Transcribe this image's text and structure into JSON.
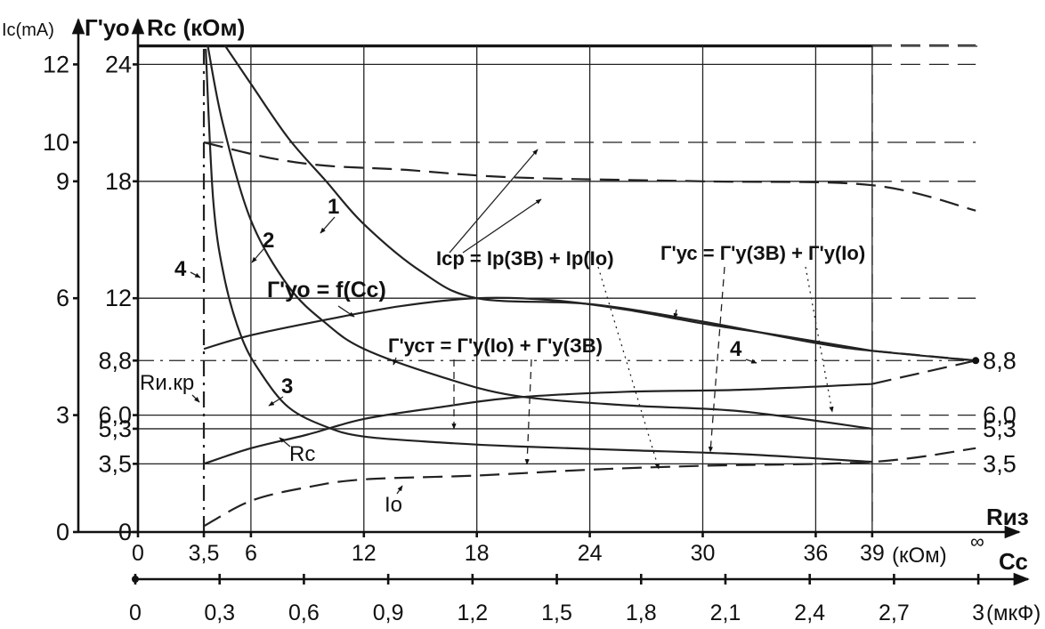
{
  "chart_data": {
    "type": "line",
    "title": "",
    "axes": {
      "left_outer_label": "Iс(mA)",
      "left_mid_label": "Г'уо",
      "left_inner_label": "Rс (кОм)",
      "top_x_label": "Rиз",
      "top_x_unit": "(кОм)",
      "bottom_x_label": "Сс",
      "bottom_x_unit": "(мкФ)"
    },
    "ticks": {
      "ic_ma": [
        {
          "label": "12",
          "y": 24
        },
        {
          "label": "10",
          "y": 20
        },
        {
          "label": "9",
          "y": 18
        },
        {
          "label": "6",
          "y": 12
        },
        {
          "label": "3",
          "y": 6
        },
        {
          "label": "0",
          "y": 0
        }
      ],
      "g_left": [
        {
          "label": "24",
          "y": 24
        },
        {
          "label": "18",
          "y": 18
        },
        {
          "label": "12",
          "y": 12
        },
        {
          "label": "8,8",
          "y": 8.8
        },
        {
          "label": "6,0",
          "y": 6.0
        },
        {
          "label": "5,3",
          "y": 5.3
        },
        {
          "label": "3,5",
          "y": 3.5
        },
        {
          "label": "0",
          "y": 0
        }
      ],
      "g_right": [
        {
          "label": "8,8",
          "y": 8.8
        },
        {
          "label": "6,0",
          "y": 6.0
        },
        {
          "label": "5,3",
          "y": 5.3
        },
        {
          "label": "3,5",
          "y": 3.5
        }
      ],
      "riz": [
        {
          "label": "0",
          "x": 0
        },
        {
          "label": "3,5",
          "x": 3.5
        },
        {
          "label": "6",
          "x": 6
        },
        {
          "label": "12",
          "x": 12
        },
        {
          "label": "18",
          "x": 18
        },
        {
          "label": "24",
          "x": 24
        },
        {
          "label": "30",
          "x": 30
        },
        {
          "label": "36",
          "x": 36
        },
        {
          "label": "39",
          "x": 39
        }
      ],
      "riz_infinity": "∞",
      "cc": [
        {
          "label": "0",
          "x": 0
        },
        {
          "label": "0,3",
          "x": 0.3
        },
        {
          "label": "0,6",
          "x": 0.6
        },
        {
          "label": "0,9",
          "x": 0.9
        },
        {
          "label": "1,2",
          "x": 1.2
        },
        {
          "label": "1,5",
          "x": 1.5
        },
        {
          "label": "1,8",
          "x": 1.8
        },
        {
          "label": "2,1",
          "x": 2.1
        },
        {
          "label": "2,4",
          "x": 2.4
        },
        {
          "label": "2,7",
          "x": 2.7
        },
        {
          "label": "3",
          "x": 3.0
        }
      ]
    },
    "grid": true,
    "reference_lines": [
      {
        "y": 25.0,
        "style": "solid",
        "to": "infinity"
      },
      {
        "y": 24.0,
        "style": "solid",
        "to": "infinity"
      },
      {
        "y": 18.0,
        "style": "solid",
        "to": "infinity"
      },
      {
        "y": 12.0,
        "style": "solid",
        "to": "infinity"
      },
      {
        "y": 6.0,
        "style": "solid",
        "to": "infinity"
      },
      {
        "y": 5.3,
        "style": "solid",
        "to": "infinity"
      },
      {
        "y": 3.5,
        "style": "solid",
        "to": "infinity"
      },
      {
        "y": 20.0,
        "style": "dashed",
        "from": 3.5,
        "to": "infinity"
      },
      {
        "y": 8.8,
        "style": "dashdot",
        "from": 0,
        "to": "infinity"
      }
    ],
    "series": [
      {
        "key": "curve1",
        "style": "solid",
        "points": [
          [
            4.6,
            25
          ],
          [
            6,
            23
          ],
          [
            8,
            20.2
          ],
          [
            10,
            18
          ],
          [
            12,
            15.8
          ],
          [
            15,
            13.4
          ],
          [
            18,
            12.0
          ],
          [
            24,
            11.7
          ],
          [
            30,
            10.8
          ],
          [
            36,
            9.7
          ],
          [
            39,
            9.3
          ],
          [
            44.5,
            8.8
          ]
        ]
      },
      {
        "key": "curve2",
        "style": "solid",
        "points": [
          [
            3.7,
            25
          ],
          [
            4.5,
            21
          ],
          [
            6,
            16
          ],
          [
            8,
            12.6
          ],
          [
            10,
            10.7
          ],
          [
            12,
            9.4
          ],
          [
            16,
            8.0
          ],
          [
            20,
            7.0
          ],
          [
            26,
            6.5
          ],
          [
            32,
            6.2
          ],
          [
            39,
            5.3
          ]
        ]
      },
      {
        "key": "curve3",
        "style": "solid",
        "points": [
          [
            3.6,
            24.8
          ],
          [
            4,
            17
          ],
          [
            4.6,
            13
          ],
          [
            5.5,
            10
          ],
          [
            6.5,
            8.2
          ],
          [
            8,
            6.4
          ],
          [
            10,
            5.4
          ],
          [
            12,
            4.9
          ],
          [
            16,
            4.6
          ],
          [
            20,
            4.4
          ],
          [
            26,
            4.2
          ],
          [
            32,
            4.0
          ],
          [
            39,
            3.6
          ]
        ]
      },
      {
        "key": "gamma_yo",
        "style": "solid",
        "points": [
          [
            3.5,
            9.4
          ],
          [
            6,
            10.1
          ],
          [
            10,
            10.9
          ],
          [
            14,
            11.6
          ],
          [
            18,
            12.0
          ],
          [
            22,
            11.9
          ],
          [
            26,
            11.4
          ],
          [
            30,
            10.7
          ],
          [
            34,
            10.1
          ],
          [
            39,
            9.3
          ]
        ]
      },
      {
        "key": "gamma_ust",
        "style": "solid",
        "points": [
          [
            3.5,
            3.5
          ],
          [
            6,
            4.3
          ],
          [
            9,
            5.0
          ],
          [
            12,
            5.8
          ],
          [
            16,
            6.4
          ],
          [
            20,
            6.9
          ],
          [
            26,
            7.2
          ],
          [
            32,
            7.3
          ],
          [
            39,
            7.6
          ]
        ]
      },
      {
        "key": "gamma_ust_ext",
        "style": "dashed",
        "points": [
          [
            39,
            7.6
          ],
          [
            44.5,
            8.8
          ]
        ]
      },
      {
        "key": "i_sr",
        "style": "dashed",
        "points": [
          [
            3.5,
            20.0
          ],
          [
            7,
            19.2
          ],
          [
            10,
            18.8
          ],
          [
            14,
            18.6
          ],
          [
            20,
            18.2
          ],
          [
            30,
            18.0
          ],
          [
            39,
            17.8
          ],
          [
            44.5,
            16.5
          ]
        ]
      },
      {
        "key": "i_o",
        "style": "dashed",
        "points": [
          [
            3.5,
            0.3
          ],
          [
            6,
            1.6
          ],
          [
            9,
            2.3
          ],
          [
            12,
            2.7
          ],
          [
            18,
            2.9
          ],
          [
            24,
            3.2
          ],
          [
            30,
            3.4
          ],
          [
            39,
            3.6
          ],
          [
            44.5,
            4.3
          ]
        ]
      },
      {
        "key": "gamma_yc_ext",
        "style": "dashed",
        "points": [
          [
            39,
            9.3
          ],
          [
            44.5,
            8.8
          ]
        ]
      },
      {
        "key": "curve4_vertical",
        "style": "dashdot",
        "points": [
          [
            3.5,
            0
          ],
          [
            3.5,
            25
          ]
        ]
      }
    ],
    "annotations": {
      "curve1": "1",
      "curve2": "2",
      "curve3": "3",
      "curve4_left": "4",
      "curve4_right": "4",
      "gamma_yo": "Г'уо = f(Сс)",
      "i_sr": "Iср = Iр(ЗВ) + Iр(Iо)",
      "gamma_yc": "Г'ус = Г'у(ЗВ) + Г'у(Iо)",
      "gamma_ust": "Г'уст = Г'у(Iо) + Г'у(ЗВ)",
      "r_ikr": "Rи.кр",
      "r_c": "Rс",
      "i_o": "Iо"
    }
  }
}
